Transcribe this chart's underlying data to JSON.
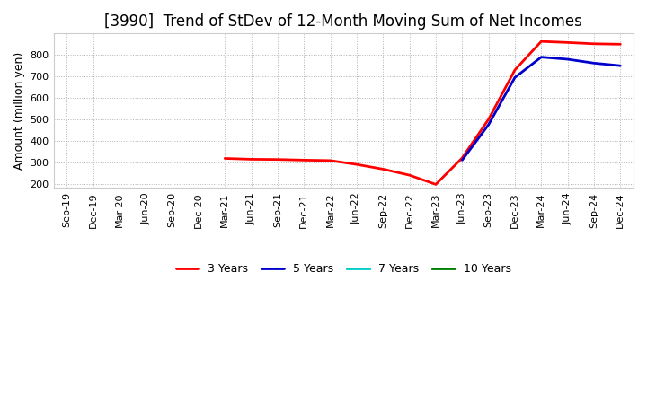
{
  "title": "[3990]  Trend of StDev of 12-Month Moving Sum of Net Incomes",
  "ylabel": "Amount (million yen)",
  "background_color": "#ffffff",
  "grid_color": "#aaaaaa",
  "ylim": [
    180,
    900
  ],
  "yticks": [
    200,
    300,
    400,
    500,
    600,
    700,
    800
  ],
  "series": {
    "3 Years": {
      "color": "#ff0000",
      "x": [
        "Sep-19",
        "Dec-19",
        "Mar-20",
        "Jun-20",
        "Sep-20",
        "Dec-20",
        "Mar-21",
        "Jun-21",
        "Sep-21",
        "Dec-21",
        "Mar-22",
        "Jun-22",
        "Sep-22",
        "Dec-22",
        "Mar-23",
        "Jun-23",
        "Sep-23",
        "Dec-23",
        "Mar-24",
        "Jun-24",
        "Sep-24",
        "Dec-24"
      ],
      "y": [
        null,
        null,
        null,
        null,
        null,
        null,
        318,
        314,
        313,
        310,
        308,
        290,
        268,
        240,
        197,
        320,
        500,
        730,
        863,
        858,
        852,
        850
      ]
    },
    "5 Years": {
      "color": "#0000cc",
      "x": [
        "Sep-19",
        "Dec-19",
        "Mar-20",
        "Jun-20",
        "Sep-20",
        "Dec-20",
        "Mar-21",
        "Jun-21",
        "Sep-21",
        "Dec-21",
        "Mar-22",
        "Jun-22",
        "Sep-22",
        "Dec-22",
        "Mar-23",
        "Jun-23",
        "Sep-23",
        "Dec-23",
        "Mar-24",
        "Jun-24",
        "Sep-24",
        "Dec-24"
      ],
      "y": [
        null,
        null,
        null,
        null,
        null,
        null,
        null,
        null,
        null,
        null,
        null,
        null,
        null,
        null,
        null,
        310,
        475,
        695,
        790,
        780,
        762,
        750
      ]
    },
    "7 Years": {
      "color": "#00cccc",
      "x": [],
      "y": []
    },
    "10 Years": {
      "color": "#008000",
      "x": [],
      "y": []
    }
  },
  "xtick_labels": [
    "Sep-19",
    "Dec-19",
    "Mar-20",
    "Jun-20",
    "Sep-20",
    "Dec-20",
    "Mar-21",
    "Jun-21",
    "Sep-21",
    "Dec-21",
    "Mar-22",
    "Jun-22",
    "Sep-22",
    "Dec-22",
    "Mar-23",
    "Jun-23",
    "Sep-23",
    "Dec-23",
    "Mar-24",
    "Jun-24",
    "Sep-24",
    "Dec-24"
  ],
  "legend_order": [
    "3 Years",
    "5 Years",
    "7 Years",
    "10 Years"
  ],
  "title_fontsize": 12,
  "title_fontweight": "normal",
  "ylabel_fontsize": 9,
  "tick_fontsize": 8,
  "legend_fontsize": 9,
  "linewidth": 2.0
}
